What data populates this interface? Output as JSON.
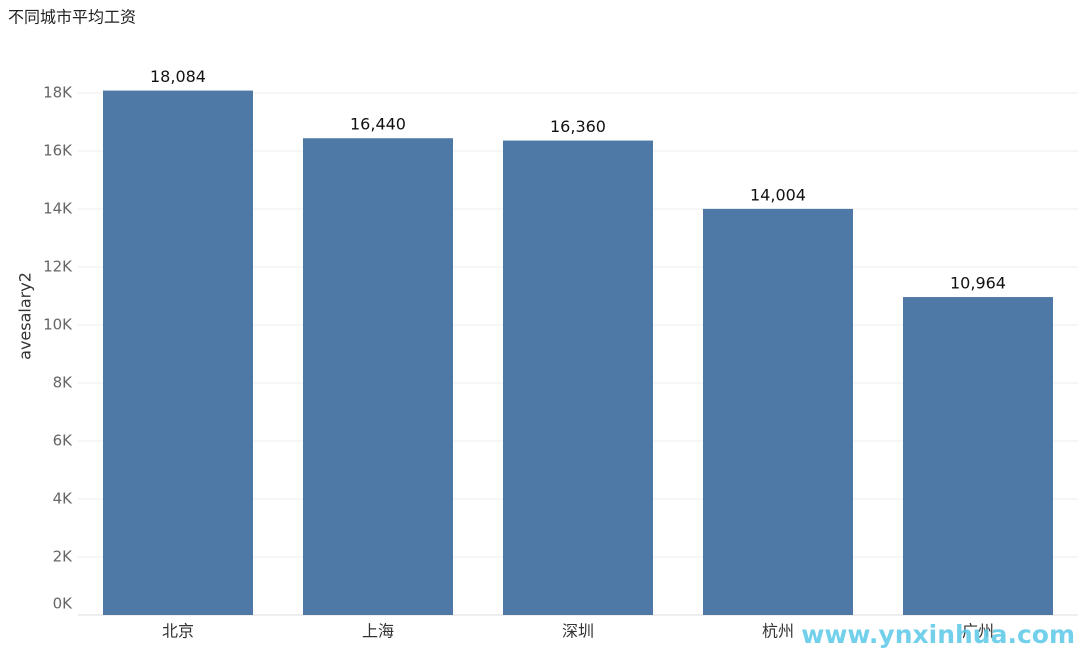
{
  "chart_data": {
    "type": "bar",
    "title": "不同城市平均工资",
    "y_label": "avesalary2",
    "categories": [
      "北京",
      "上海",
      "深圳",
      "杭州",
      "广州"
    ],
    "values": [
      18084,
      16440,
      16360,
      14004,
      10964
    ],
    "value_labels": [
      "18,084",
      "16,440",
      "16,360",
      "14,004",
      "10,964"
    ],
    "color": "#4e79a7",
    "ylim": [
      0,
      19000
    ],
    "yticks": [
      {
        "value": 0,
        "label": "0K"
      },
      {
        "value": 2000,
        "label": "2K"
      },
      {
        "value": 4000,
        "label": "4K"
      },
      {
        "value": 6000,
        "label": "6K"
      },
      {
        "value": 8000,
        "label": "8K"
      },
      {
        "value": 10000,
        "label": "10K"
      },
      {
        "value": 12000,
        "label": "12K"
      },
      {
        "value": 14000,
        "label": "14K"
      },
      {
        "value": 16000,
        "label": "16K"
      },
      {
        "value": 18000,
        "label": "18K"
      }
    ],
    "grid": true,
    "watermark": "www.ynxinhua.com"
  }
}
